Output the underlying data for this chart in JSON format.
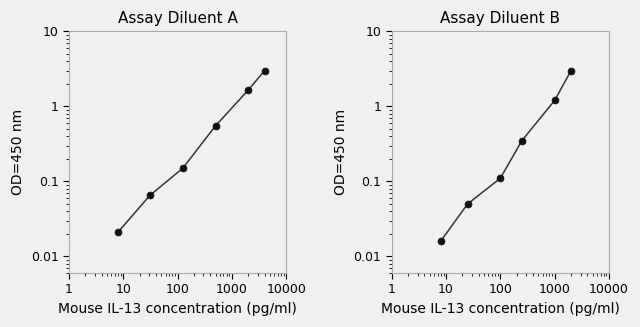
{
  "plot_A": {
    "title": "Assay Diluent A",
    "x": [
      8,
      31,
      125,
      500,
      2000,
      4000
    ],
    "y": [
      0.021,
      0.065,
      0.15,
      0.55,
      1.65,
      3.0
    ],
    "xlabel": "Mouse IL-13 concentration (pg/ml)",
    "ylabel": "OD=450 nm",
    "xlim": [
      1,
      10000
    ],
    "ylim": [
      0.006,
      10
    ],
    "xticks": [
      1,
      10,
      100,
      1000,
      10000
    ],
    "yticks": [
      0.01,
      0.1,
      1,
      10
    ],
    "yticklabels": [
      "0.01",
      "0.1",
      "1",
      "10"
    ]
  },
  "plot_B": {
    "title": "Assay Diluent B",
    "x": [
      8,
      25,
      100,
      250,
      1000,
      2000
    ],
    "y": [
      0.016,
      0.05,
      0.11,
      0.35,
      1.2,
      3.0
    ],
    "xlabel": "Mouse IL-13 concentration (pg/ml)",
    "ylabel": "OD=450 nm",
    "xlim": [
      1,
      10000
    ],
    "ylim": [
      0.006,
      10
    ],
    "xticks": [
      1,
      10,
      100,
      1000,
      10000
    ],
    "yticks": [
      0.01,
      0.1,
      1,
      10
    ],
    "yticklabels": [
      "0.01",
      "0.1",
      "1",
      "10"
    ]
  },
  "line_color": "#333333",
  "marker_color": "#111111",
  "bg_color": "#f0f0f0",
  "title_fontsize": 11,
  "label_fontsize": 10,
  "tick_fontsize": 9
}
